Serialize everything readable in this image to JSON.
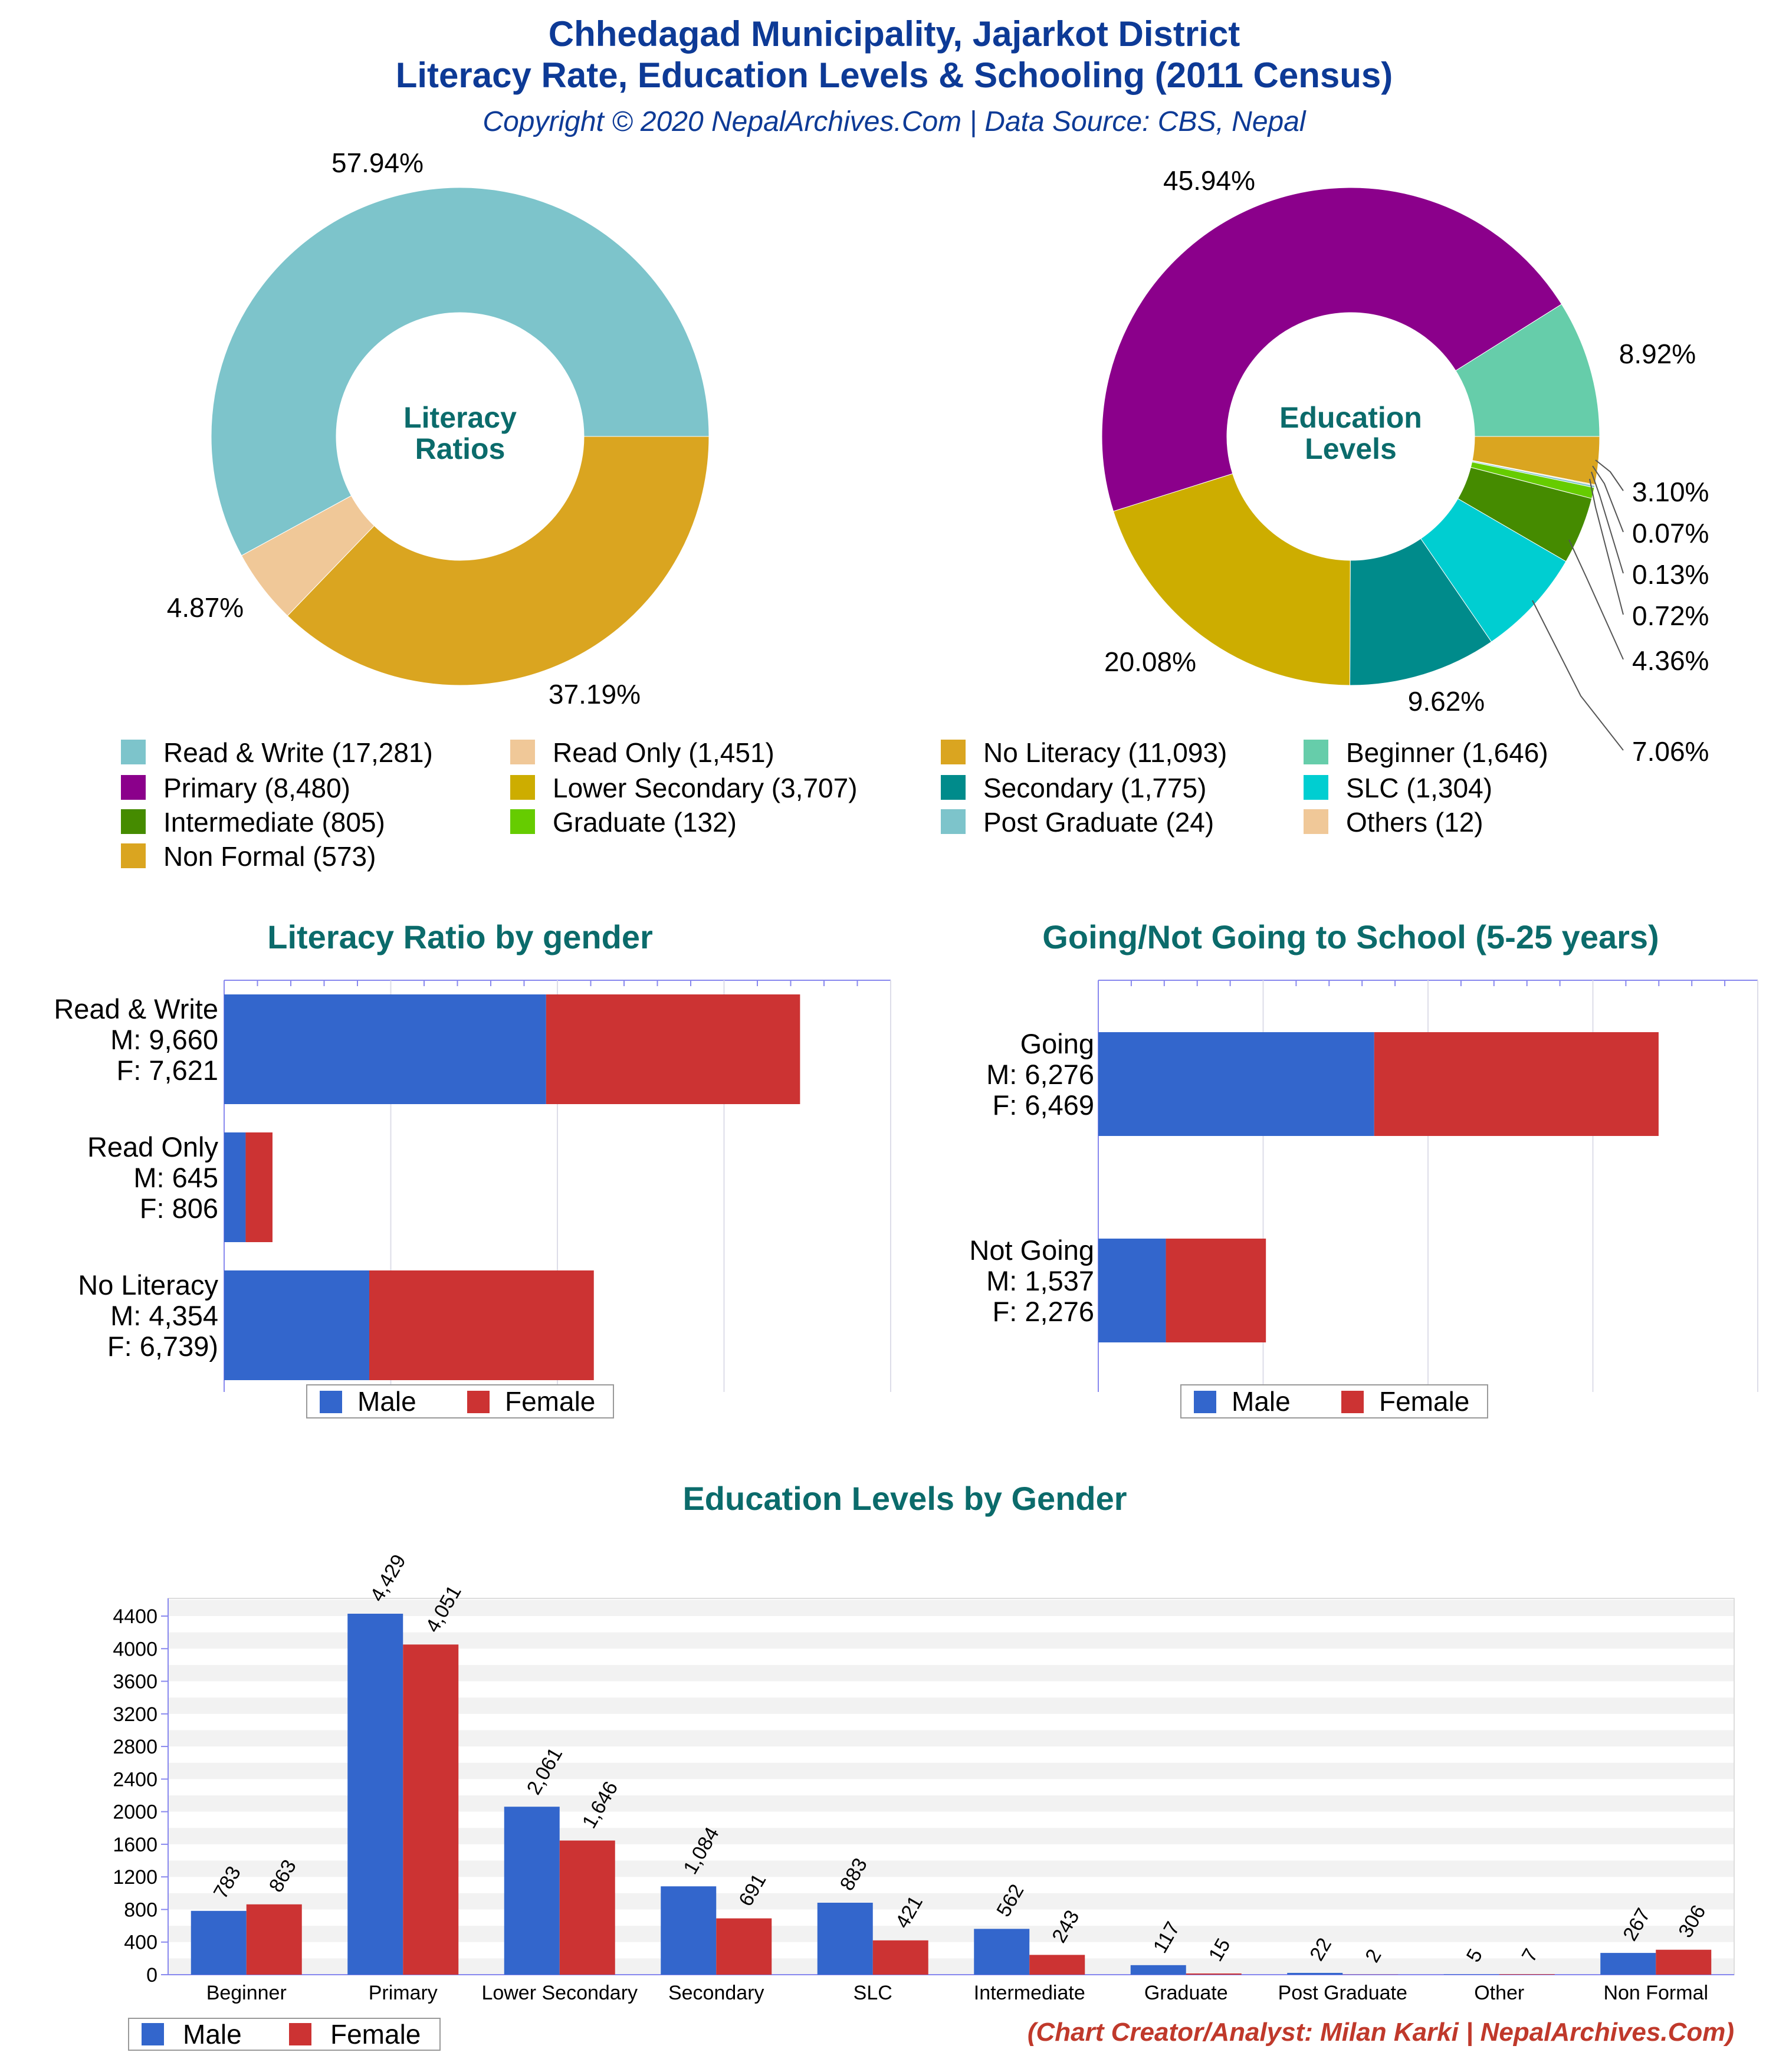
{
  "header": {
    "title_line1": "Chhedagad Municipality, Jajarkot District",
    "title_line2": "Literacy Rate, Education Levels & Schooling (2011 Census)",
    "copyright": "Copyright © 2020 NepalArchives.Com | Data Source: CBS, Nepal"
  },
  "donut_literacy": {
    "center_line1": "Literacy",
    "center_line2": "Ratios",
    "slices": [
      {
        "label": "Read & Write",
        "value": 17281,
        "pct": "57.94%",
        "color": "#7dc4cb"
      },
      {
        "label": "Read Only",
        "value": 1451,
        "pct": "4.87%",
        "color": "#f0c898"
      },
      {
        "label": "No Literacy",
        "value": 11093,
        "pct": "37.19%",
        "color": "#daa520"
      }
    ]
  },
  "donut_education": {
    "center_line1": "Education",
    "center_line2": "Levels",
    "slices": [
      {
        "label": "Beginner",
        "value": 1646,
        "pct": "8.92%",
        "color": "#66cdaa"
      },
      {
        "label": "Non Formal",
        "value": 573,
        "pct": "3.10%",
        "color": "#daa520"
      },
      {
        "label": "Others",
        "value": 12,
        "pct": "0.07%",
        "color": "#f0c898"
      },
      {
        "label": "Post Graduate",
        "value": 24,
        "pct": "0.13%",
        "color": "#7dc4cb"
      },
      {
        "label": "Graduate",
        "value": 132,
        "pct": "0.72%",
        "color": "#66cc00"
      },
      {
        "label": "Intermediate",
        "value": 805,
        "pct": "4.36%",
        "color": "#458b00"
      },
      {
        "label": "SLC",
        "value": 1304,
        "pct": "7.06%",
        "color": "#00ced1"
      },
      {
        "label": "Secondary",
        "value": 1775,
        "pct": "9.62%",
        "color": "#008b8b"
      },
      {
        "label": "Lower Secondary",
        "value": 3707,
        "pct": "20.08%",
        "color": "#cdad00"
      },
      {
        "label": "Primary",
        "value": 8480,
        "pct": "45.94%",
        "color": "#8b008b"
      }
    ]
  },
  "legend_top": [
    {
      "text": "Read & Write (17,281)",
      "color": "#7dc4cb"
    },
    {
      "text": "Read Only (1,451)",
      "color": "#f0c898"
    },
    {
      "text": "No Literacy (11,093)",
      "color": "#daa520"
    },
    {
      "text": "Beginner (1,646)",
      "color": "#66cdaa"
    },
    {
      "text": "Primary (8,480)",
      "color": "#8b008b"
    },
    {
      "text": "Lower Secondary (3,707)",
      "color": "#cdad00"
    },
    {
      "text": "Secondary (1,775)",
      "color": "#008b8b"
    },
    {
      "text": "SLC (1,304)",
      "color": "#00ced1"
    },
    {
      "text": "Intermediate (805)",
      "color": "#458b00"
    },
    {
      "text": "Graduate (132)",
      "color": "#66cc00"
    },
    {
      "text": "Post Graduate (24)",
      "color": "#7dc4cb"
    },
    {
      "text": "Others (12)",
      "color": "#f0c898"
    },
    {
      "text": "Non Formal (573)",
      "color": "#daa520"
    }
  ],
  "literacy_gender": {
    "title": "Literacy Ratio by gender",
    "xlim": [
      0,
      20000
    ],
    "rows": [
      {
        "label": [
          "Read & Write",
          "M: 9,660",
          "F: 7,621"
        ],
        "male": 9660,
        "female": 7621
      },
      {
        "label": [
          "Read Only",
          "M: 645",
          "F: 806"
        ],
        "male": 645,
        "female": 806
      },
      {
        "label": [
          "No Literacy",
          "M: 4,354",
          "F: 6,739)"
        ],
        "male": 4354,
        "female": 6739
      }
    ],
    "legend": {
      "male": "Male",
      "female": "Female"
    }
  },
  "school_gender": {
    "title": "Going/Not Going to School (5-25 years)",
    "xlim": [
      0,
      15000
    ],
    "rows": [
      {
        "label": [
          "Going",
          "M: 6,276",
          "F: 6,469"
        ],
        "male": 6276,
        "female": 6469
      },
      {
        "label": [
          "Not Going",
          "M: 1,537",
          "F: 2,276"
        ],
        "male": 1537,
        "female": 2276
      }
    ],
    "legend": {
      "male": "Male",
      "female": "Female"
    }
  },
  "chart_data": [
    {
      "type": "pie",
      "title": "Literacy Ratios",
      "categories": [
        "Read & Write",
        "Read Only",
        "No Literacy"
      ],
      "values": [
        17281,
        1451,
        11093
      ],
      "percent_labels": [
        "57.94%",
        "4.87%",
        "37.19%"
      ]
    },
    {
      "type": "pie",
      "title": "Education Levels",
      "categories": [
        "Beginner",
        "Non Formal",
        "Others",
        "Post Graduate",
        "Graduate",
        "Intermediate",
        "SLC",
        "Secondary",
        "Lower Secondary",
        "Primary"
      ],
      "values": [
        1646,
        573,
        12,
        24,
        132,
        805,
        1304,
        1775,
        3707,
        8480
      ],
      "percent_labels": [
        "8.92%",
        "3.10%",
        "0.07%",
        "0.13%",
        "0.72%",
        "4.36%",
        "7.06%",
        "9.62%",
        "20.08%",
        "45.94%"
      ]
    },
    {
      "type": "bar",
      "title": "Literacy Ratio by gender",
      "categories": [
        "Read & Write",
        "Read Only",
        "No Literacy"
      ],
      "series": [
        {
          "name": "Male",
          "values": [
            9660,
            645,
            4354
          ]
        },
        {
          "name": "Female",
          "values": [
            7621,
            806,
            6739
          ]
        }
      ],
      "stacked": true,
      "orientation": "horizontal"
    },
    {
      "type": "bar",
      "title": "Going/Not Going to School (5-25 years)",
      "categories": [
        "Going",
        "Not Going"
      ],
      "series": [
        {
          "name": "Male",
          "values": [
            6276,
            1537
          ]
        },
        {
          "name": "Female",
          "values": [
            6469,
            2276
          ]
        }
      ],
      "stacked": true,
      "orientation": "horizontal"
    },
    {
      "type": "bar",
      "title": "Education Levels by Gender",
      "categories": [
        "Beginner",
        "Primary",
        "Lower Secondary",
        "Secondary",
        "SLC",
        "Intermediate",
        "Graduate",
        "Post Graduate",
        "Other",
        "Non Formal"
      ],
      "series": [
        {
          "name": "Male",
          "values": [
            783,
            4429,
            2061,
            1084,
            883,
            562,
            117,
            22,
            5,
            267
          ],
          "labels": [
            "783",
            "4,429",
            "2,061",
            "1,084",
            "883",
            "562",
            "117",
            "22",
            "5",
            "267"
          ]
        },
        {
          "name": "Female",
          "values": [
            863,
            4051,
            1646,
            691,
            421,
            243,
            15,
            2,
            7,
            306
          ],
          "labels": [
            "863",
            "4,051",
            "1,646",
            "691",
            "421",
            "243",
            "15",
            "2",
            "7",
            "306"
          ]
        }
      ],
      "ylim": [
        0,
        4400
      ],
      "yticks": [
        "0",
        "400",
        "800",
        "1200",
        "1600",
        "2000",
        "2400",
        "2800",
        "3200",
        "3600",
        "4000",
        "4400"
      ],
      "grid": true,
      "legend": "bottom-left"
    }
  ],
  "edu_gender": {
    "title": "Education Levels by Gender",
    "legend": {
      "male": "Male",
      "female": "Female"
    }
  },
  "colors": {
    "male": "#3366cc",
    "female": "#cc3333"
  },
  "footer": {
    "credit": "(Chart Creator/Analyst: Milan Karki | NepalArchives.Com)"
  }
}
